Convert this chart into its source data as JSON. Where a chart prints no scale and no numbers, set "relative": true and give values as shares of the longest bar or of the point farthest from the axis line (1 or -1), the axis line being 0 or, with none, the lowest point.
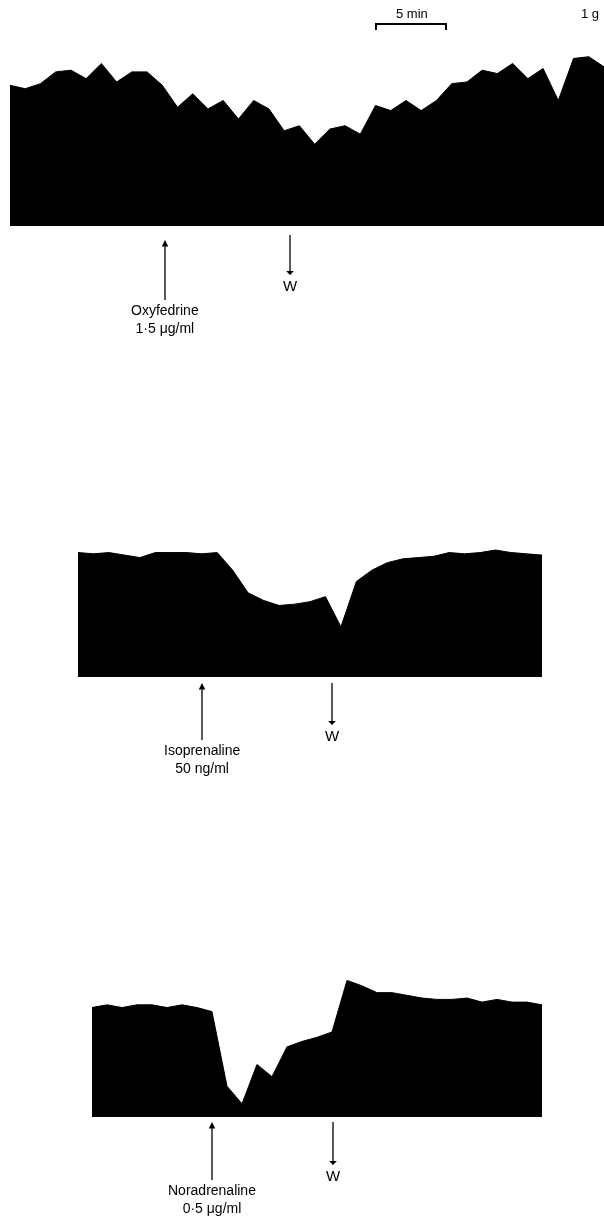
{
  "chart_data": [
    {
      "type": "area",
      "relative": true,
      "categories": [
        null,
        null,
        null,
        null,
        null,
        null,
        null,
        null,
        null,
        null,
        null,
        null,
        null,
        null,
        null,
        null,
        null,
        null,
        null,
        null,
        null,
        null,
        null,
        null,
        null,
        null,
        null,
        null,
        null,
        null,
        null,
        null,
        null,
        null,
        null,
        null,
        null,
        null,
        null,
        null
      ],
      "series": [
        {
          "color": "#000000",
          "values": [
            0.83,
            0.81,
            0.84,
            0.91,
            0.92,
            0.87,
            0.96,
            0.85,
            0.91,
            0.91,
            0.83,
            0.7,
            0.78,
            0.69,
            0.74,
            0.63,
            0.74,
            0.69,
            0.56,
            0.59,
            0.48,
            0.57,
            0.59,
            0.54,
            0.71,
            0.68,
            0.74,
            0.68,
            0.74,
            0.84,
            0.85,
            0.92,
            0.9,
            0.96,
            0.87,
            0.93,
            0.74,
            0.99,
            1.0,
            0.94
          ]
        }
      ],
      "annotations": [
        "Oxyfedrine\n1·5 μg/ml",
        "W",
        "5 min",
        "1 g"
      ]
    },
    {
      "type": "area",
      "relative": true,
      "categories": [
        null,
        null,
        null,
        null,
        null,
        null,
        null,
        null,
        null,
        null,
        null,
        null,
        null,
        null,
        null,
        null,
        null,
        null,
        null,
        null,
        null,
        null,
        null,
        null,
        null,
        null,
        null,
        null,
        null,
        null,
        null
      ],
      "series": [
        {
          "color": "#000000",
          "values": [
            0.98,
            0.97,
            0.98,
            0.96,
            0.94,
            0.98,
            0.98,
            0.98,
            0.97,
            0.98,
            0.84,
            0.66,
            0.6,
            0.56,
            0.57,
            0.59,
            0.63,
            0.39,
            0.75,
            0.84,
            0.9,
            0.93,
            0.94,
            0.95,
            0.98,
            0.97,
            0.98,
            1.0,
            0.98,
            0.97,
            0.96
          ]
        }
      ],
      "annotations": [
        "Isoprenaline\n50 ng/ml",
        "W"
      ]
    },
    {
      "type": "area",
      "relative": true,
      "categories": [
        null,
        null,
        null,
        null,
        null,
        null,
        null,
        null,
        null,
        null,
        null,
        null,
        null,
        null,
        null,
        null,
        null,
        null,
        null,
        null,
        null,
        null,
        null,
        null,
        null,
        null,
        null,
        null,
        null,
        null,
        null
      ],
      "series": [
        {
          "color": "#000000",
          "values": [
            0.8,
            0.82,
            0.8,
            0.82,
            0.82,
            0.8,
            0.82,
            0.8,
            0.77,
            0.22,
            0.09,
            0.38,
            0.29,
            0.51,
            0.55,
            0.58,
            0.62,
            1.0,
            0.96,
            0.91,
            0.91,
            0.89,
            0.87,
            0.86,
            0.86,
            0.87,
            0.84,
            0.86,
            0.84,
            0.84,
            0.82
          ]
        }
      ],
      "annotations": [
        "Noradrenaline\n0·5 μg/ml",
        "W"
      ]
    }
  ]
}
